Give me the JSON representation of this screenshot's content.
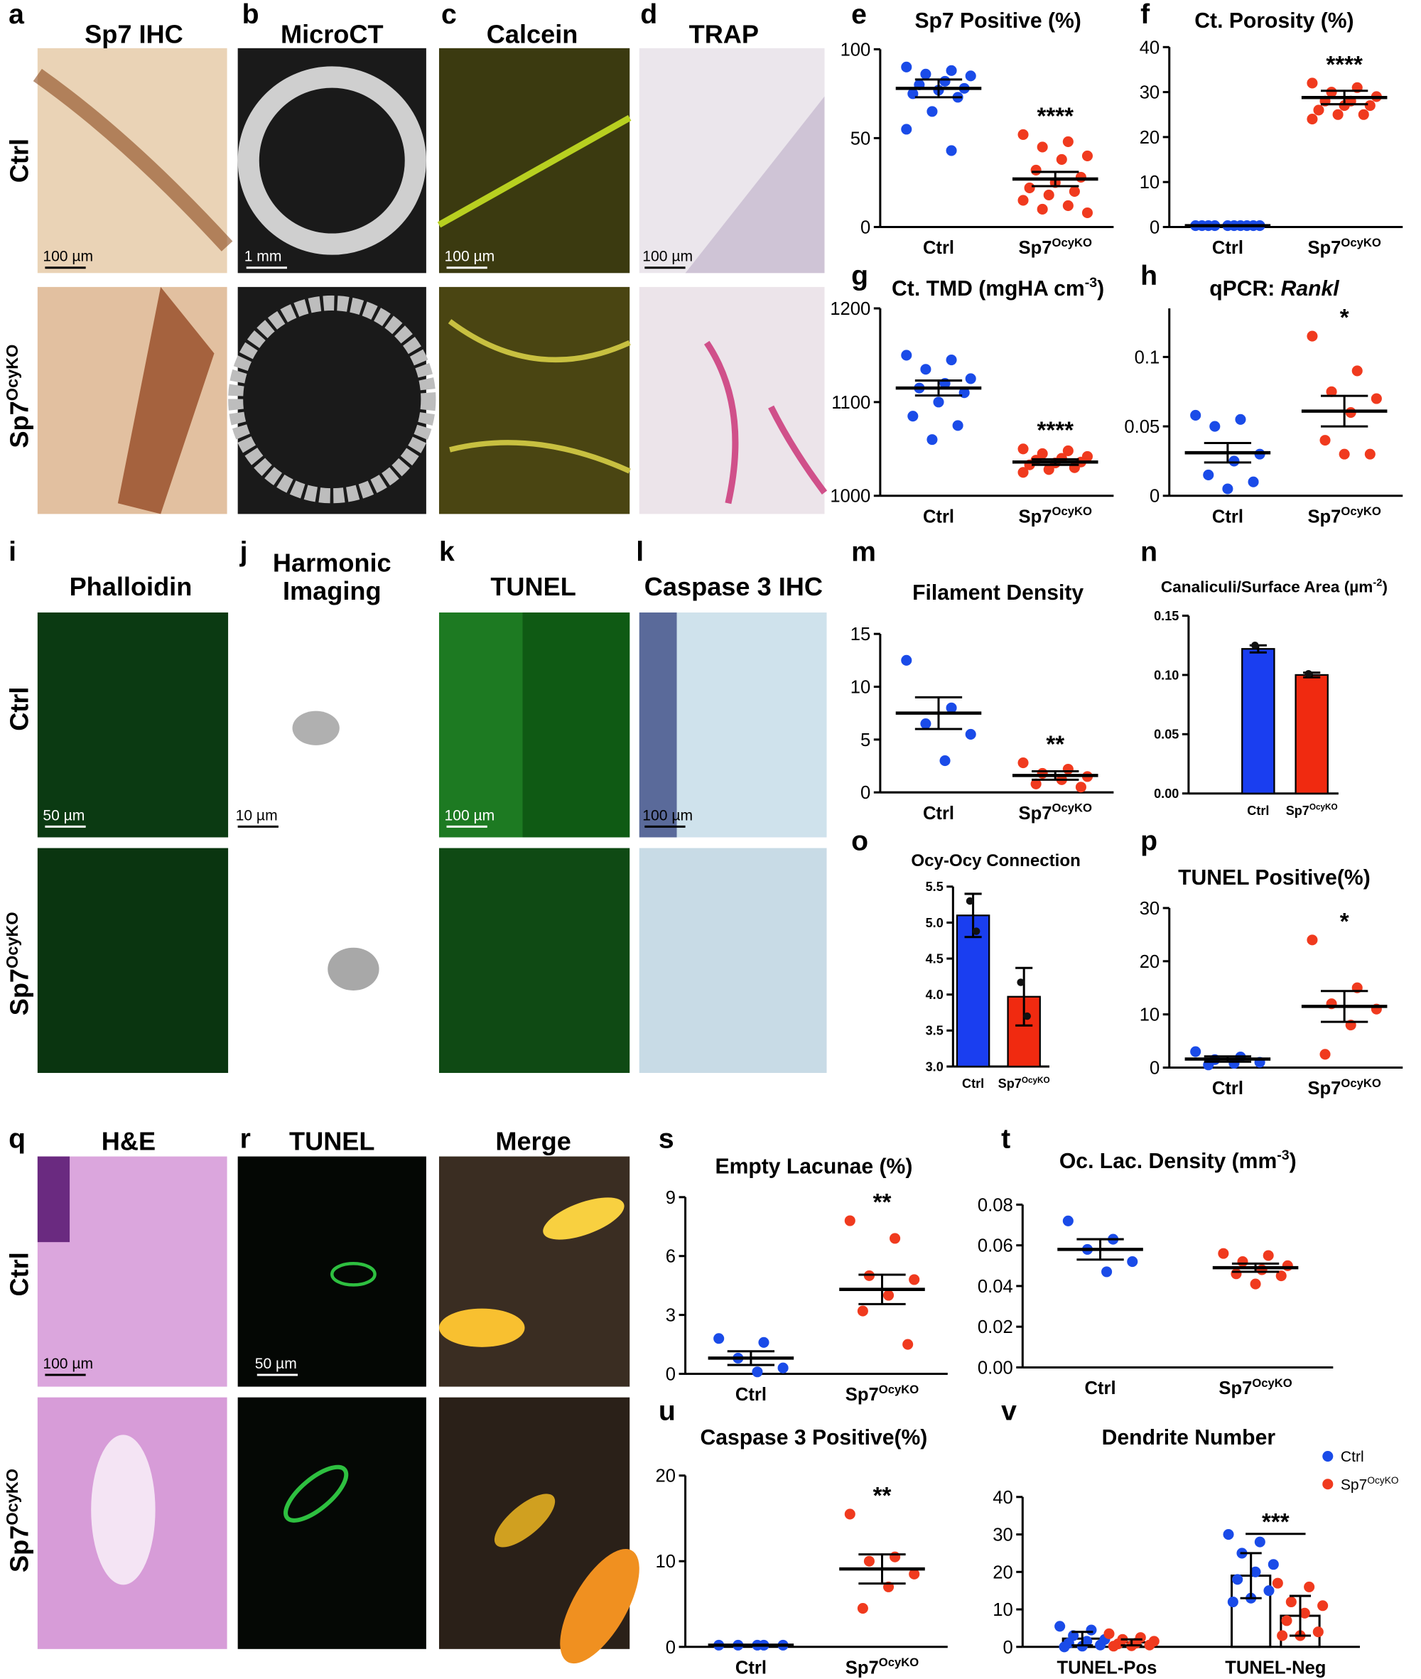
{
  "figure": {
    "panel_letters": [
      "a",
      "b",
      "c",
      "d",
      "e",
      "f",
      "g",
      "h",
      "i",
      "j",
      "k",
      "l",
      "m",
      "n",
      "o",
      "p",
      "q",
      "r",
      "s",
      "t",
      "u",
      "v"
    ],
    "image_titles": [
      "Sp7 IHC",
      "MicroCT",
      "Calcein",
      "TRAP",
      "Phalloidin",
      "Harmonic",
      "Imaging",
      "TUNEL",
      "Caspase 3 IHC",
      "H&E",
      "TUNEL",
      "Merge"
    ],
    "row_labels": [
      {
        "text": "Ctrl"
      },
      {
        "text": "Sp7",
        "sup": "OcyKO"
      }
    ],
    "scale_bars": [
      "100 µm",
      "1 mm",
      "100 µm",
      "100 µm",
      "50 µm",
      "10 µm",
      "100 µm",
      "100 µm",
      "100 µm",
      "50 µm"
    ]
  },
  "chart_data": [
    {
      "type": "dotplot",
      "title": [
        {
          "text": "Sp7 Positive (%)"
        }
      ],
      "categories": [
        "Ctrl",
        "Sp7"
      ],
      "category_sup": [
        null,
        "OcyKO"
      ],
      "ylim": [
        0,
        100
      ],
      "yticks": [
        0,
        50,
        100
      ],
      "groups": [
        {
          "color": "#1a4be8",
          "points": [
            90,
            88,
            86,
            85,
            82,
            80,
            78,
            77,
            75,
            73,
            65,
            55,
            43
          ],
          "mean": 78,
          "sem": 5
        },
        {
          "color": "#f03a1e",
          "points": [
            52,
            48,
            45,
            40,
            38,
            32,
            28,
            25,
            22,
            20,
            18,
            15,
            12,
            10,
            8
          ],
          "mean": 27,
          "sem": 4,
          "annotation": "****"
        }
      ]
    },
    {
      "type": "dotplot",
      "title": [
        {
          "text": "Ct. Porosity (%)"
        }
      ],
      "categories": [
        "Ctrl",
        "Sp7"
      ],
      "category_sup": [
        null,
        "OcyKO"
      ],
      "ylim": [
        0,
        40
      ],
      "yticks": [
        0,
        10,
        20,
        30,
        40
      ],
      "groups": [
        {
          "color": "#1a4be8",
          "points": [
            0.3,
            0.3,
            0.3,
            0.3,
            0.3,
            0.3,
            0.3,
            0.3,
            0.3,
            0.3
          ],
          "mean": 0.3,
          "sem": 0.05
        },
        {
          "color": "#f03a1e",
          "points": [
            32,
            31,
            30,
            29,
            28,
            28,
            27,
            27,
            26,
            25,
            25,
            24
          ],
          "mean": 28.8,
          "sem": 1.5,
          "annotation": "****"
        }
      ]
    },
    {
      "type": "dotplot",
      "title": [
        {
          "text": "Ct. TMD (mgHA cm"
        },
        {
          "text": "-3",
          "style": "sup"
        },
        {
          "text": ")"
        }
      ],
      "categories": [
        "Ctrl",
        "Sp7"
      ],
      "category_sup": [
        null,
        "OcyKO"
      ],
      "ylim": [
        1000,
        1200
      ],
      "yticks": [
        1000,
        1100,
        1200
      ],
      "groups": [
        {
          "color": "#1a4be8",
          "points": [
            1150,
            1145,
            1135,
            1125,
            1120,
            1115,
            1110,
            1100,
            1085,
            1075,
            1060
          ],
          "mean": 1115,
          "sem": 8
        },
        {
          "color": "#f03a1e",
          "points": [
            1050,
            1048,
            1045,
            1042,
            1040,
            1038,
            1036,
            1035,
            1033,
            1030,
            1028,
            1025
          ],
          "mean": 1036,
          "sem": 3,
          "annotation": "****"
        }
      ]
    },
    {
      "type": "dotplot",
      "title": [
        {
          "text": "qPCR: "
        },
        {
          "text": "Rankl",
          "style": "italic"
        }
      ],
      "categories": [
        "Ctrl",
        "Sp7"
      ],
      "category_sup": [
        null,
        "OcyKO"
      ],
      "ylim": [
        0,
        0.135
      ],
      "yticks": [
        0,
        0.05,
        0.1
      ],
      "groups": [
        {
          "color": "#1a4be8",
          "points": [
            0.058,
            0.055,
            0.05,
            0.03,
            0.025,
            0.015,
            0.01,
            0.005
          ],
          "mean": 0.031,
          "sem": 0.007
        },
        {
          "color": "#f03a1e",
          "points": [
            0.115,
            0.09,
            0.075,
            0.07,
            0.06,
            0.04,
            0.03,
            0.03
          ],
          "mean": 0.061,
          "sem": 0.011,
          "annotation": "*"
        }
      ]
    },
    {
      "type": "dotplot",
      "title": [
        {
          "text": "Filament Density"
        }
      ],
      "categories": [
        "Ctrl",
        "Sp7"
      ],
      "category_sup": [
        null,
        "OcyKO"
      ],
      "ylim": [
        0,
        15
      ],
      "yticks": [
        0,
        5,
        10,
        15
      ],
      "groups": [
        {
          "color": "#1a4be8",
          "points": [
            12.5,
            8,
            6.5,
            5.5,
            3
          ],
          "mean": 7.5,
          "sem": 1.5
        },
        {
          "color": "#f03a1e",
          "points": [
            2.8,
            2.2,
            1.8,
            1.5,
            1.2,
            0.8,
            0.5
          ],
          "mean": 1.6,
          "sem": 0.4,
          "annotation": "**"
        }
      ]
    },
    {
      "type": "bar",
      "title": [
        {
          "text": "Canaliculi/Surface Area (µm"
        },
        {
          "text": "-2",
          "style": "sup"
        },
        {
          "text": ")"
        }
      ],
      "categories": [
        "Ctrl",
        "Sp7"
      ],
      "category_sup": [
        null,
        "OcyKO"
      ],
      "ylim": [
        0,
        0.15
      ],
      "yticks": [
        {
          "value": 0,
          "label": "0.00"
        },
        {
          "value": 0.05,
          "label": "0.05"
        },
        {
          "value": 0.1,
          "label": "0.10"
        },
        {
          "value": 0.15,
          "label": "0.15"
        }
      ],
      "values": [
        0.122,
        0.1
      ],
      "errors": [
        0.003,
        0.002
      ],
      "colors": [
        "#1a3ef0",
        "#f02a10"
      ],
      "points": [
        [
          0.125
        ],
        [
          0.101
        ]
      ]
    },
    {
      "type": "bar",
      "title": [
        {
          "text": "Ocy-Ocy Connection"
        }
      ],
      "categories": [
        "Ctrl",
        "Sp7"
      ],
      "category_sup": [
        null,
        "OcyKO"
      ],
      "ylim": [
        3,
        5.5
      ],
      "yticks": [
        {
          "value": 3,
          "label": "3.0"
        },
        {
          "value": 3.5,
          "label": "3.5"
        },
        {
          "value": 4,
          "label": "4.0"
        },
        {
          "value": 4.5,
          "label": "4.5"
        },
        {
          "value": 5,
          "label": "5.0"
        },
        {
          "value": 5.5,
          "label": "5.5"
        }
      ],
      "values": [
        5.1,
        3.97
      ],
      "errors": [
        0.3,
        0.4
      ],
      "colors": [
        "#1a3ef0",
        "#f02a10"
      ],
      "points": [
        [
          5.3,
          4.88
        ],
        [
          4.17,
          3.7
        ]
      ]
    },
    {
      "type": "dotplot",
      "title": [
        {
          "text": "TUNEL Positive(%)"
        }
      ],
      "categories": [
        "Ctrl",
        "Sp7"
      ],
      "category_sup": [
        null,
        "OcyKO"
      ],
      "ylim": [
        0,
        30
      ],
      "yticks": [
        0,
        10,
        20,
        30
      ],
      "groups": [
        {
          "color": "#1a4be8",
          "points": [
            3,
            2,
            1.5,
            1,
            0.8,
            0.5
          ],
          "mean": 1.6,
          "sem": 0.5
        },
        {
          "color": "#f03a1e",
          "points": [
            24,
            15,
            12,
            11,
            8,
            2.5
          ],
          "mean": 11.5,
          "sem": 2.9,
          "annotation": "*"
        }
      ]
    },
    {
      "type": "dotplot",
      "title": [
        {
          "text": "Empty Lacunae (%)"
        }
      ],
      "categories": [
        "Ctrl",
        "Sp7"
      ],
      "category_sup": [
        null,
        "OcyKO"
      ],
      "ylim": [
        0,
        9
      ],
      "yticks": [
        0,
        3,
        6,
        9
      ],
      "groups": [
        {
          "color": "#1a4be8",
          "points": [
            1.8,
            1.6,
            0.8,
            0.3,
            0.1
          ],
          "mean": 0.8,
          "sem": 0.35
        },
        {
          "color": "#f03a1e",
          "points": [
            7.8,
            6.9,
            5,
            4.8,
            4,
            3.2,
            1.5
          ],
          "mean": 4.3,
          "sem": 0.75,
          "annotation": "**"
        }
      ]
    },
    {
      "type": "dotplot",
      "title": [
        {
          "text": "Oc. Lac. Density (mm"
        },
        {
          "text": "-3",
          "style": "sup"
        },
        {
          "text": ")"
        }
      ],
      "categories": [
        "Ctrl",
        "Sp7"
      ],
      "category_sup": [
        null,
        "OcyKO"
      ],
      "ylim": [
        0,
        0.08
      ],
      "yticks": [
        {
          "value": 0,
          "label": "0.00"
        },
        {
          "value": 0.02,
          "label": "0.02"
        },
        {
          "value": 0.04,
          "label": "0.04"
        },
        {
          "value": 0.06,
          "label": "0.06"
        },
        {
          "value": 0.08,
          "label": "0.08"
        }
      ],
      "groups": [
        {
          "color": "#1a4be8",
          "points": [
            0.072,
            0.063,
            0.058,
            0.052,
            0.047
          ],
          "mean": 0.058,
          "sem": 0.005
        },
        {
          "color": "#f03a1e",
          "points": [
            0.056,
            0.055,
            0.052,
            0.05,
            0.048,
            0.046,
            0.045,
            0.041
          ],
          "mean": 0.049,
          "sem": 0.002
        }
      ]
    },
    {
      "type": "dotplot",
      "title": [
        {
          "text": "Caspase 3 Positive(%)"
        }
      ],
      "categories": [
        "Ctrl",
        "Sp7"
      ],
      "category_sup": [
        null,
        "OcyKO"
      ],
      "ylim": [
        0,
        20
      ],
      "yticks": [
        0,
        10,
        20
      ],
      "groups": [
        {
          "color": "#1a4be8",
          "points": [
            0.2,
            0.2,
            0.2,
            0.2,
            0.2
          ],
          "mean": 0.2,
          "sem": 0.02
        },
        {
          "color": "#f03a1e",
          "points": [
            15.5,
            10.5,
            10,
            8.5,
            7,
            4.5
          ],
          "mean": 9.1,
          "sem": 1.7,
          "annotation": "**"
        }
      ]
    },
    {
      "type": "grouped_bar",
      "title": [
        {
          "text": "Dendrite Number"
        }
      ],
      "categories": [
        "TUNEL-Pos",
        "TUNEL-Neg"
      ],
      "ylim": [
        0,
        40
      ],
      "yticks": [
        0,
        10,
        20,
        30,
        40
      ],
      "legend": "top-right",
      "annotation": "***",
      "series": [
        {
          "name": "Ctrl",
          "color": "#1a4be8",
          "values": [
            2.2,
            19
          ],
          "errors": [
            1.8,
            6
          ],
          "points": [
            [
              5.5,
              4.5,
              3,
              2,
              1.5,
              1,
              0.5,
              0.2,
              0
            ],
            [
              30,
              28,
              25,
              22,
              20,
              18,
              15,
              13,
              12
            ]
          ]
        },
        {
          "name": "Sp7",
          "name_sup": "OcyKO",
          "color": "#f03a1e",
          "values": [
            1.2,
            8.3
          ],
          "errors": [
            0.8,
            5.3
          ],
          "points": [
            [
              3.5,
              2.5,
              2,
              1.5,
              1,
              0.8,
              0.5,
              0.3,
              0.2
            ],
            [
              17,
              16,
              12,
              11,
              9,
              7,
              4,
              3,
              3
            ]
          ]
        }
      ]
    }
  ]
}
